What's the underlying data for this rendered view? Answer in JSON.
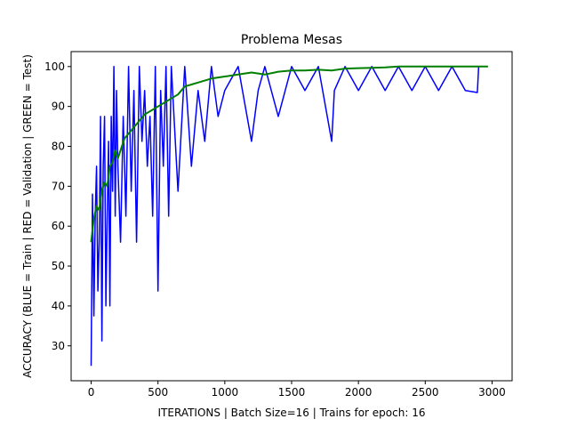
{
  "chart_data": {
    "type": "line",
    "title": "Problema Mesas",
    "xlabel": "ITERATIONS | Batch Size=16 | Trains for epoch: 16",
    "ylabel": "ACCURACY (BLUE = Train | RED = Validation | GREEN = Test)",
    "xlim": [
      -150,
      3150
    ],
    "ylim": [
      21.25,
      103.75
    ],
    "xticks": [
      0,
      500,
      1000,
      1500,
      2000,
      2500,
      3000
    ],
    "yticks": [
      30,
      40,
      50,
      60,
      70,
      80,
      90,
      100
    ],
    "grid": false,
    "series": [
      {
        "color": "#0000ff",
        "x": [
          0,
          10,
          20,
          30,
          40,
          50,
          60,
          70,
          80,
          90,
          100,
          110,
          120,
          130,
          140,
          150,
          160,
          170,
          180,
          190,
          200,
          220,
          240,
          260,
          280,
          300,
          320,
          340,
          360,
          380,
          400,
          420,
          440,
          460,
          480,
          500,
          520,
          540,
          560,
          580,
          600,
          650,
          700,
          750,
          800,
          850,
          900,
          950,
          1000,
          1100,
          1200,
          1250,
          1300,
          1400,
          1500,
          1600,
          1700,
          1800,
          1820,
          1900,
          2000,
          2100,
          2200,
          2300,
          2400,
          2500,
          2600,
          2700,
          2800,
          2890,
          2900
        ],
        "values": [
          25,
          68,
          37.5,
          62.5,
          75,
          43.75,
          56,
          87.5,
          31.25,
          75,
          87.5,
          40,
          62.5,
          81.25,
          40,
          87.5,
          68.75,
          100,
          62.5,
          94,
          75,
          56,
          87.5,
          62.5,
          100,
          68.75,
          94,
          56,
          100,
          81.25,
          94,
          75,
          87.5,
          62.5,
          100,
          43.75,
          94,
          75,
          100,
          62.5,
          100,
          68.75,
          100,
          75,
          94,
          81.25,
          100,
          87.5,
          94,
          100,
          81.25,
          94,
          100,
          87.5,
          100,
          94,
          100,
          81.25,
          94,
          100,
          94,
          100,
          94,
          100,
          94,
          100,
          94,
          100,
          94,
          93.5,
          100
        ]
      },
      {
        "color": "#007f00",
        "x": [
          0,
          20,
          40,
          60,
          80,
          100,
          120,
          140,
          160,
          180,
          200,
          250,
          300,
          350,
          400,
          450,
          500,
          550,
          600,
          650,
          700,
          750,
          800,
          900,
          1000,
          1100,
          1200,
          1300,
          1400,
          1500,
          1600,
          1700,
          1800,
          1900,
          2000,
          2100,
          2200,
          2300,
          2400,
          2500,
          2600,
          2700,
          2800,
          2900,
          2970
        ],
        "values": [
          56,
          62,
          65,
          64,
          69,
          71,
          70,
          75,
          76,
          79,
          77,
          82,
          84,
          86,
          88,
          89,
          90,
          91,
          92,
          93,
          95,
          95.5,
          96,
          97,
          97.5,
          98,
          98.5,
          98,
          98.7,
          99,
          99,
          99.2,
          99,
          99.5,
          99.6,
          99.7,
          99.8,
          100,
          100,
          100,
          100,
          100,
          100,
          100,
          100
        ]
      }
    ]
  }
}
